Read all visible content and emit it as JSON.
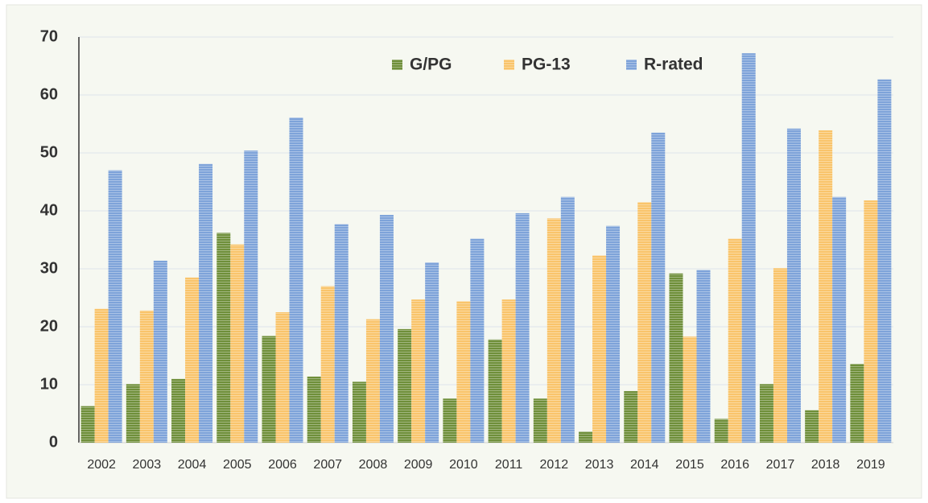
{
  "chart_data": {
    "type": "bar",
    "categories": [
      "2002",
      "2003",
      "2004",
      "2005",
      "2006",
      "2007",
      "2008",
      "2009",
      "2010",
      "2011",
      "2012",
      "2013",
      "2014",
      "2015",
      "2016",
      "2017",
      "2018",
      "2019"
    ],
    "series": [
      {
        "name": "G/PG",
        "color": "#6f8f3a",
        "values": [
          6.3,
          10.1,
          11,
          36.2,
          18.4,
          11.4,
          10.5,
          19.6,
          7.6,
          17.8,
          7.6,
          1.9,
          8.9,
          29.2,
          4.1,
          10.1,
          5.6,
          13.6
        ]
      },
      {
        "name": "PG-13",
        "color": "#f9c46b",
        "values": [
          23.1,
          22.8,
          28.5,
          34.2,
          22.5,
          27,
          21.3,
          24.7,
          24.4,
          24.7,
          38.7,
          32.3,
          41.5,
          18.3,
          35.2,
          30.1,
          53.9,
          41.8
        ]
      },
      {
        "name": "R-rated",
        "color": "#7ea3d9",
        "values": [
          47,
          31.4,
          48.1,
          50.4,
          56.1,
          37.7,
          39.3,
          31.1,
          35.2,
          39.6,
          42.4,
          37.4,
          53.5,
          29.8,
          67.2,
          54.2,
          42.4,
          62.7
        ]
      }
    ],
    "ylim": [
      0,
      70
    ],
    "yticks": [
      0,
      10,
      20,
      30,
      40,
      50,
      60,
      70
    ],
    "grid": true,
    "legend": "top"
  }
}
